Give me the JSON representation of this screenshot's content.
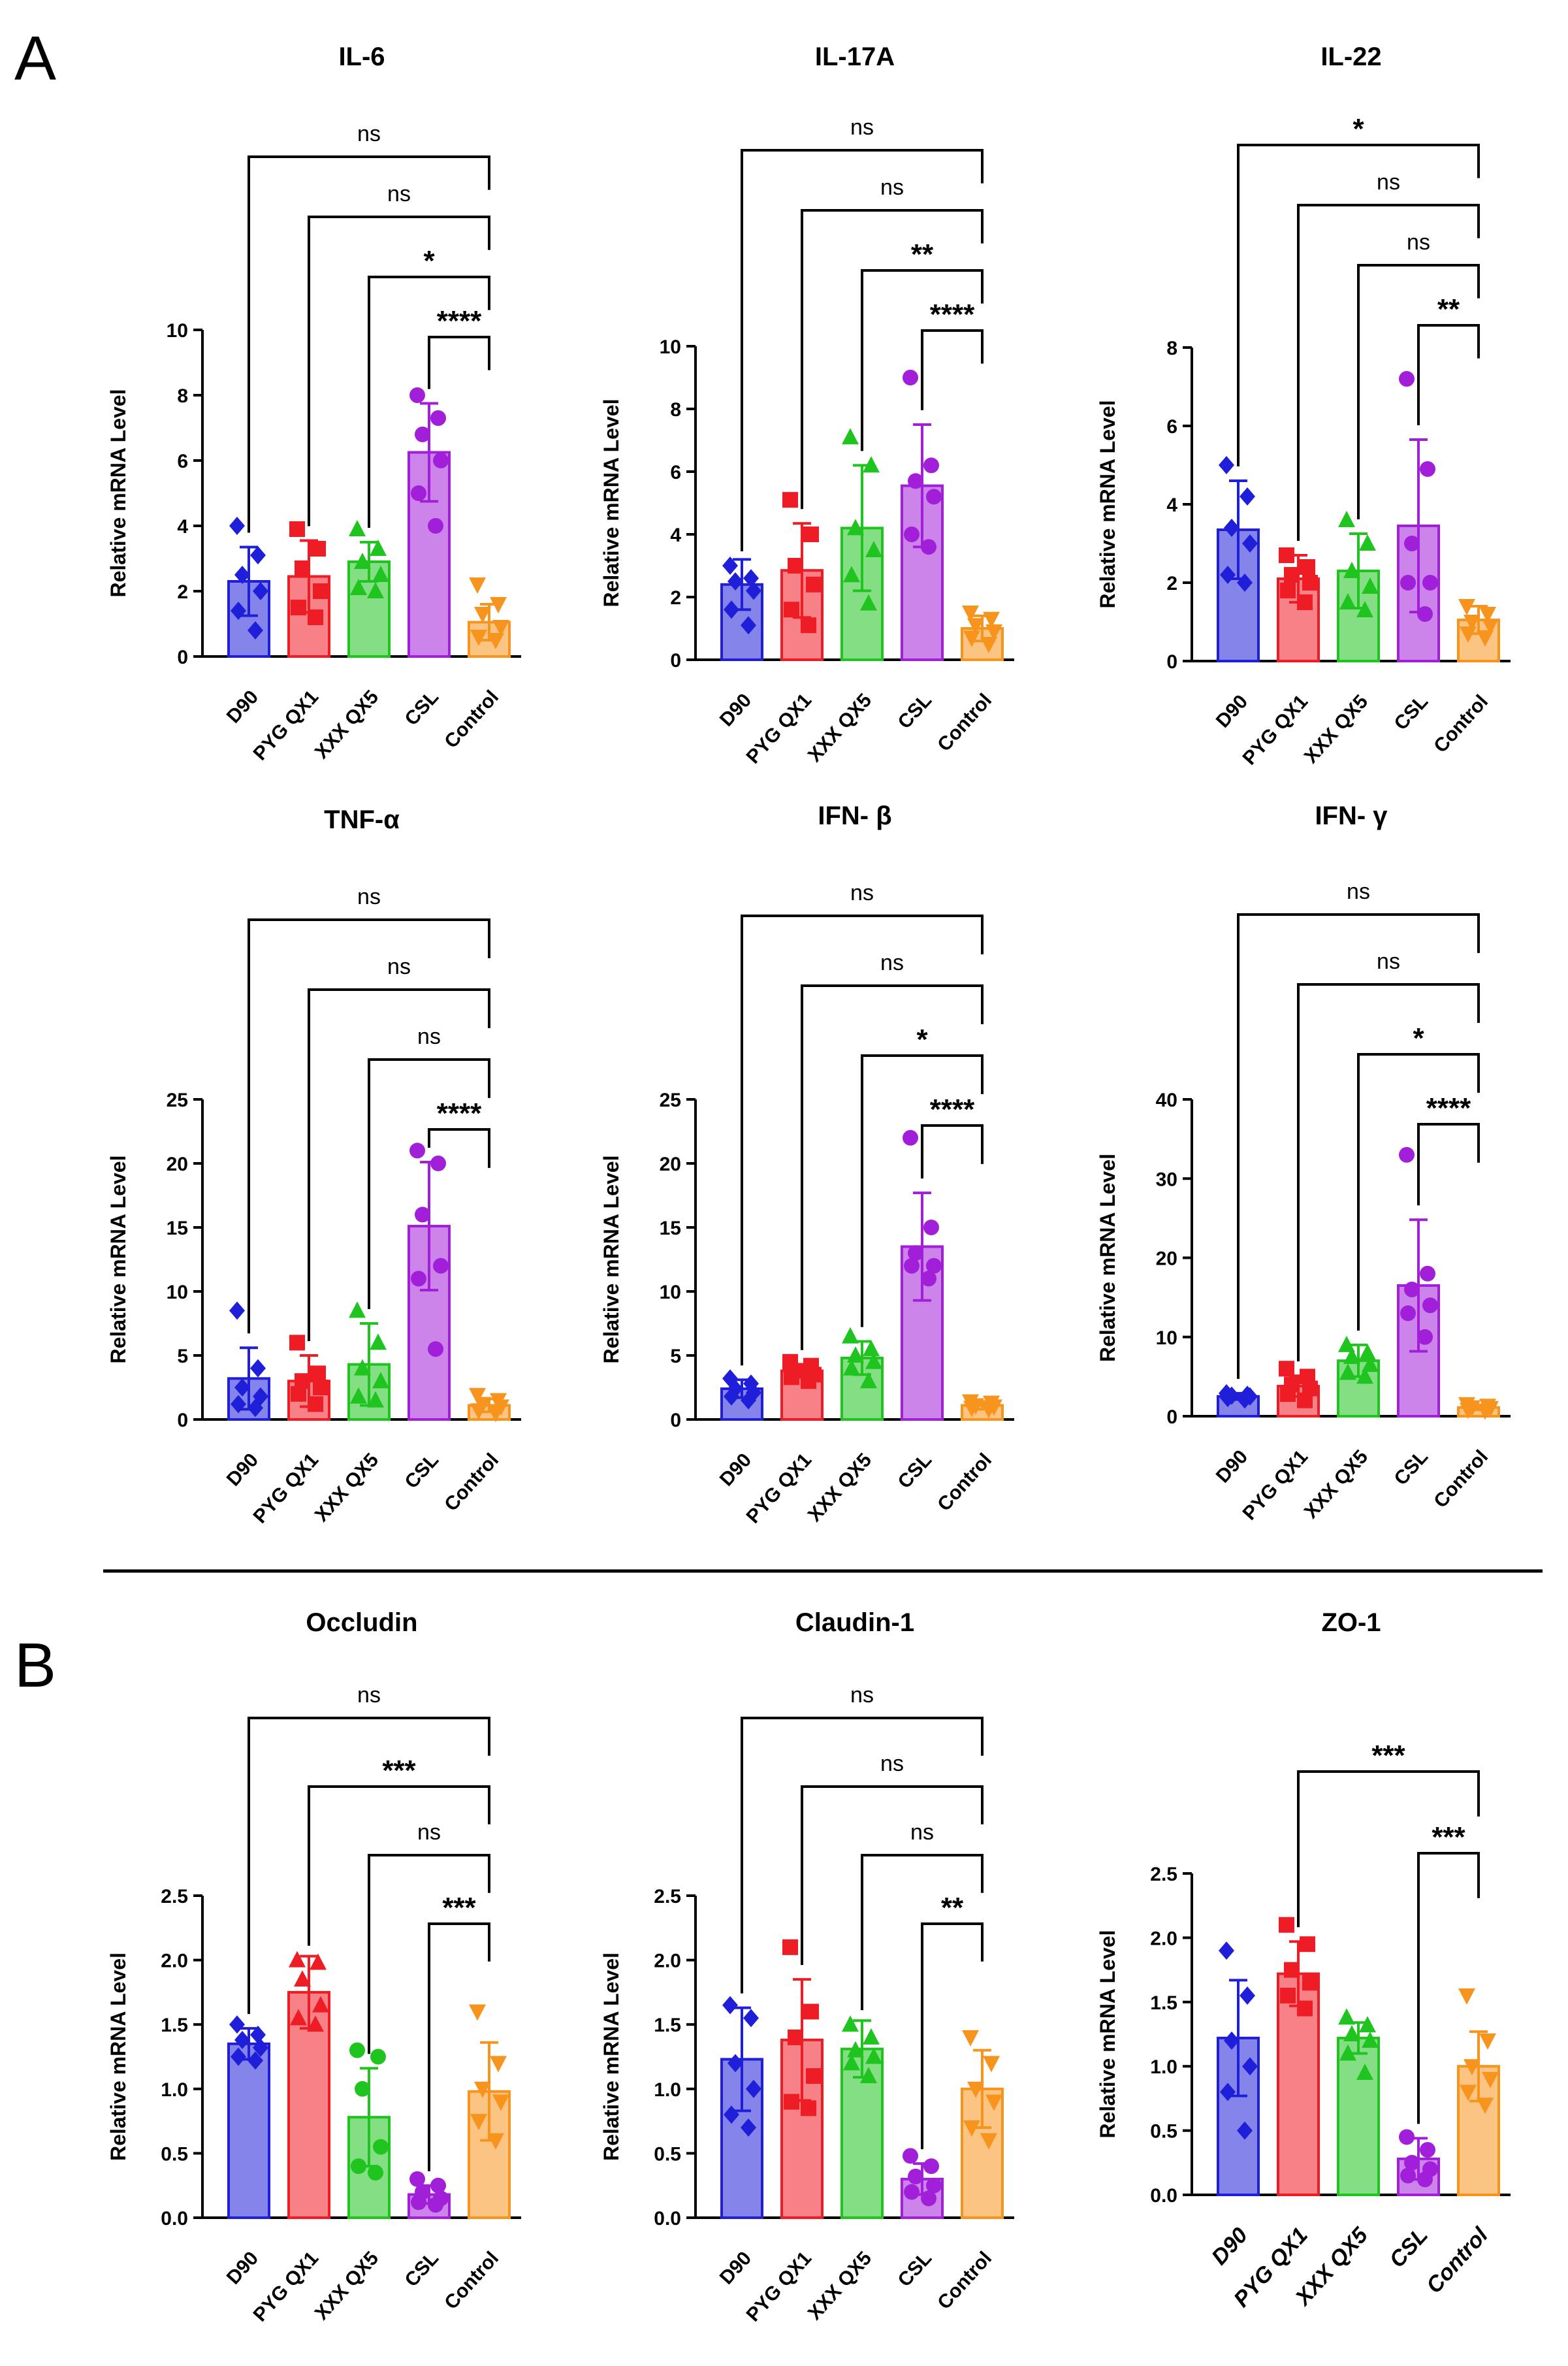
{
  "panels": [
    "A",
    "B"
  ],
  "group_colors": [
    "#1f1fd9",
    "#ee1c24",
    "#1fc41f",
    "#a21fd9",
    "#f7941d"
  ],
  "chart_data": [
    {
      "type": "bar",
      "panel": "A",
      "title": "IL-6",
      "ylabel": "Relative mRNA Level",
      "categories": [
        "D90",
        "PYG QX1",
        "XXX QX5",
        "CSL",
        "Control"
      ],
      "means": [
        2.3,
        2.45,
        2.9,
        6.25,
        1.05
      ],
      "sd": [
        1.05,
        1.1,
        0.6,
        1.5,
        0.55
      ],
      "points": [
        [
          4.0,
          3.1,
          2.5,
          2.0,
          1.4,
          0.8
        ],
        [
          3.9,
          3.3,
          2.7,
          2.0,
          1.5,
          1.2
        ],
        [
          3.9,
          3.3,
          2.9,
          2.5,
          2.1,
          2.0
        ],
        [
          8.0,
          7.3,
          6.8,
          6.0,
          5.0,
          4.0
        ],
        [
          2.2,
          1.6,
          1.3,
          0.9,
          0.6,
          0.5
        ]
      ],
      "ylim": [
        0,
        10
      ],
      "yticks": [
        "0",
        "2",
        "4",
        "6",
        "8",
        "10"
      ],
      "markers": [
        "diamond",
        "square",
        "triangle",
        "circle",
        "triangle-down"
      ],
      "comparisons": [
        {
          "from": 0,
          "label": "ns"
        },
        {
          "from": 1,
          "label": "ns"
        },
        {
          "from": 2,
          "label": "*"
        },
        {
          "from": 3,
          "label": "****"
        }
      ]
    },
    {
      "type": "bar",
      "panel": "A",
      "title": "IL-17A",
      "ylabel": "Relative mRNA Level",
      "categories": [
        "D90",
        "PYG QX1",
        "XXX QX5",
        "CSL",
        "Control"
      ],
      "means": [
        2.4,
        2.85,
        4.2,
        5.55,
        1.0
      ],
      "sd": [
        0.8,
        1.5,
        2.0,
        1.95,
        0.4
      ],
      "points": [
        [
          3.0,
          2.6,
          2.5,
          2.2,
          1.6,
          1.1
        ],
        [
          5.1,
          4.0,
          3.0,
          2.4,
          1.6,
          1.1
        ],
        [
          7.1,
          6.2,
          4.2,
          3.5,
          2.7,
          1.8
        ],
        [
          9.0,
          6.2,
          5.7,
          5.2,
          4.0,
          3.6
        ],
        [
          1.5,
          1.3,
          1.1,
          0.9,
          0.7,
          0.5
        ]
      ],
      "ylim": [
        0,
        10
      ],
      "yticks": [
        "0",
        "2",
        "4",
        "6",
        "8",
        "10"
      ],
      "markers": [
        "diamond",
        "square",
        "triangle",
        "circle",
        "triangle-down"
      ],
      "comparisons": [
        {
          "from": 0,
          "label": "ns"
        },
        {
          "from": 1,
          "label": "ns"
        },
        {
          "from": 2,
          "label": "**"
        },
        {
          "from": 3,
          "label": "****"
        }
      ]
    },
    {
      "type": "bar",
      "panel": "A",
      "title": "IL-22",
      "ylabel": "Relative mRNA Level",
      "categories": [
        "D90",
        "PYG QX1",
        "XXX QX5",
        "CSL",
        "Control"
      ],
      "means": [
        3.35,
        2.1,
        2.3,
        3.45,
        1.05
      ],
      "sd": [
        1.25,
        0.6,
        0.95,
        2.2,
        0.35
      ],
      "points": [
        [
          5.0,
          4.2,
          3.4,
          3.0,
          2.2,
          2.0
        ],
        [
          2.7,
          2.4,
          2.2,
          2.0,
          1.8,
          1.5
        ],
        [
          3.6,
          3.0,
          2.3,
          1.9,
          1.5,
          1.3
        ],
        [
          7.2,
          4.9,
          3.0,
          2.0,
          2.0,
          1.2
        ],
        [
          1.4,
          1.2,
          1.0,
          0.9,
          0.7,
          0.6
        ]
      ],
      "ylim": [
        0,
        8
      ],
      "yticks": [
        "0",
        "2",
        "4",
        "6",
        "8"
      ],
      "markers": [
        "diamond",
        "square",
        "triangle",
        "circle",
        "triangle-down"
      ],
      "comparisons": [
        {
          "from": 0,
          "label": "*"
        },
        {
          "from": 1,
          "label": "ns"
        },
        {
          "from": 2,
          "label": "ns"
        },
        {
          "from": 3,
          "label": "**"
        }
      ]
    },
    {
      "type": "bar",
      "panel": "A",
      "title": "TNF-α",
      "ylabel": "Relative mRNA Level",
      "categories": [
        "D90",
        "PYG QX1",
        "XXX QX5",
        "CSL",
        "Control"
      ],
      "means": [
        3.2,
        3.0,
        4.3,
        15.1,
        1.1
      ],
      "sd": [
        2.4,
        2.0,
        3.2,
        5.0,
        0.5
      ],
      "points": [
        [
          8.5,
          4.0,
          2.5,
          1.8,
          1.2,
          0.9
        ],
        [
          6.0,
          3.6,
          3.0,
          2.5,
          2.0,
          1.2
        ],
        [
          8.5,
          6.0,
          4.0,
          3.0,
          1.8,
          1.5
        ],
        [
          21.0,
          20.0,
          16.0,
          12.0,
          11.0,
          5.5
        ],
        [
          1.9,
          1.5,
          1.2,
          1.0,
          0.7,
          0.5
        ]
      ],
      "ylim": [
        0,
        25
      ],
      "yticks": [
        "0",
        "5",
        "10",
        "15",
        "20",
        "25"
      ],
      "markers": [
        "diamond",
        "square",
        "triangle",
        "circle",
        "triangle-down"
      ],
      "comparisons": [
        {
          "from": 0,
          "label": "ns"
        },
        {
          "from": 1,
          "label": "ns"
        },
        {
          "from": 2,
          "label": "ns"
        },
        {
          "from": 3,
          "label": "****"
        }
      ]
    },
    {
      "type": "bar",
      "panel": "A",
      "title": "IFN- β",
      "ylabel": "Relative mRNA Level",
      "categories": [
        "D90",
        "PYG QX1",
        "XXX QX5",
        "CSL",
        "Control"
      ],
      "means": [
        2.4,
        3.8,
        4.8,
        13.5,
        1.1
      ],
      "sd": [
        0.7,
        0.5,
        1.3,
        4.2,
        0.3
      ],
      "points": [
        [
          3.2,
          2.8,
          2.4,
          2.1,
          1.8,
          1.5
        ],
        [
          4.5,
          4.2,
          3.8,
          3.5,
          3.3,
          3.0
        ],
        [
          6.5,
          5.5,
          5.0,
          4.5,
          4.0,
          3.0
        ],
        [
          22.0,
          15.0,
          13.0,
          12.0,
          12.0,
          11.0
        ],
        [
          1.4,
          1.3,
          1.1,
          1.0,
          0.9,
          0.8
        ]
      ],
      "ylim": [
        0,
        25
      ],
      "yticks": [
        "0",
        "5",
        "10",
        "15",
        "20",
        "25"
      ],
      "markers": [
        "diamond",
        "square",
        "triangle",
        "circle",
        "triangle-down"
      ],
      "comparisons": [
        {
          "from": 0,
          "label": "ns"
        },
        {
          "from": 1,
          "label": "ns"
        },
        {
          "from": 2,
          "label": "*"
        },
        {
          "from": 3,
          "label": "****"
        }
      ]
    },
    {
      "type": "bar",
      "panel": "A",
      "title": "IFN- γ",
      "ylabel": "Relative mRNA Level",
      "categories": [
        "D90",
        "PYG QX1",
        "XXX QX5",
        "CSL",
        "Control"
      ],
      "means": [
        2.5,
        3.8,
        7.0,
        16.5,
        1.1
      ],
      "sd": [
        0.4,
        1.3,
        2.0,
        8.3,
        0.3
      ],
      "points": [
        [
          2.9,
          2.7,
          2.6,
          2.5,
          2.3,
          2.1
        ],
        [
          6.0,
          5.0,
          4.0,
          3.5,
          2.8,
          2.0
        ],
        [
          9.0,
          8.0,
          7.5,
          6.5,
          5.5,
          5.0
        ],
        [
          33.0,
          18.0,
          16.0,
          14.0,
          13.0,
          10.0
        ],
        [
          1.5,
          1.3,
          1.1,
          1.0,
          0.8,
          0.7
        ]
      ],
      "ylim": [
        0,
        40
      ],
      "yticks": [
        "0",
        "10",
        "20",
        "30",
        "40"
      ],
      "markers": [
        "diamond",
        "square",
        "triangle",
        "circle",
        "triangle-down"
      ],
      "comparisons": [
        {
          "from": 0,
          "label": "ns"
        },
        {
          "from": 1,
          "label": "ns"
        },
        {
          "from": 2,
          "label": "*"
        },
        {
          "from": 3,
          "label": "****"
        }
      ]
    },
    {
      "type": "bar",
      "panel": "B",
      "title": "Occludin",
      "ylabel": "Relative mRNA Level",
      "categories": [
        "D90",
        "PYG QX1",
        "XXX QX5",
        "CSL",
        "Control"
      ],
      "means": [
        1.35,
        1.75,
        0.78,
        0.18,
        0.98
      ],
      "sd": [
        0.12,
        0.28,
        0.38,
        0.07,
        0.38
      ],
      "points": [
        [
          1.5,
          1.42,
          1.38,
          1.32,
          1.25,
          1.22
        ],
        [
          2.0,
          1.98,
          1.85,
          1.65,
          1.55,
          1.5
        ],
        [
          1.3,
          1.25,
          1.0,
          0.55,
          0.4,
          0.35
        ],
        [
          0.3,
          0.25,
          0.2,
          0.15,
          0.12,
          0.1
        ],
        [
          1.6,
          1.2,
          1.0,
          0.9,
          0.75,
          0.6
        ]
      ],
      "ylim": [
        0,
        2.5
      ],
      "yticks": [
        "0.0",
        "0.5",
        "1.0",
        "1.5",
        "2.0",
        "2.5"
      ],
      "markers": [
        "diamond",
        "triangle",
        "circle",
        "circle",
        "triangle-down"
      ],
      "comparisons": [
        {
          "from": 0,
          "label": "ns"
        },
        {
          "from": 1,
          "label": "***"
        },
        {
          "from": 2,
          "label": "ns"
        },
        {
          "from": 3,
          "label": "***"
        }
      ]
    },
    {
      "type": "bar",
      "panel": "B",
      "title": "Claudin-1",
      "ylabel": "Relative mRNA Level",
      "categories": [
        "D90",
        "PYG QX1",
        "XXX QX5",
        "CSL",
        "Control"
      ],
      "means": [
        1.23,
        1.38,
        1.31,
        0.3,
        1.0
      ],
      "sd": [
        0.4,
        0.47,
        0.22,
        0.12,
        0.3
      ],
      "points": [
        [
          1.65,
          1.55,
          1.2,
          1.0,
          0.8,
          0.7
        ],
        [
          2.1,
          1.6,
          1.4,
          1.1,
          0.9,
          0.85
        ],
        [
          1.5,
          1.4,
          1.3,
          1.25,
          1.2,
          1.1
        ],
        [
          0.48,
          0.4,
          0.32,
          0.25,
          0.2,
          0.15
        ],
        [
          1.4,
          1.2,
          1.0,
          0.9,
          0.7,
          0.6
        ]
      ],
      "ylim": [
        0,
        2.5
      ],
      "yticks": [
        "0.0",
        "0.5",
        "1.0",
        "1.5",
        "2.0",
        "2.5"
      ],
      "markers": [
        "diamond",
        "square",
        "triangle",
        "circle",
        "triangle-down"
      ],
      "comparisons": [
        {
          "from": 0,
          "label": "ns"
        },
        {
          "from": 1,
          "label": "ns"
        },
        {
          "from": 2,
          "label": "ns"
        },
        {
          "from": 3,
          "label": "**"
        }
      ]
    },
    {
      "type": "bar",
      "panel": "B",
      "title": "ZO-1",
      "ylabel": "Relative mRNA Level",
      "categories": [
        "D90",
        "PYG QX1",
        "XXX QX5",
        "CSL",
        "Control"
      ],
      "means": [
        1.22,
        1.72,
        1.22,
        0.28,
        1.0
      ],
      "sd": [
        0.45,
        0.25,
        0.12,
        0.16,
        0.27
      ],
      "points": [
        [
          1.9,
          1.55,
          1.2,
          1.0,
          0.8,
          0.5
        ],
        [
          2.1,
          1.95,
          1.75,
          1.65,
          1.55,
          1.45
        ],
        [
          1.38,
          1.32,
          1.25,
          1.2,
          1.1,
          0.95
        ],
        [
          0.45,
          0.35,
          0.25,
          0.2,
          0.15,
          0.12
        ],
        [
          1.55,
          1.2,
          1.0,
          0.9,
          0.8,
          0.7
        ]
      ],
      "ylim": [
        0,
        2.5
      ],
      "yticks": [
        "0.0",
        "0.5",
        "1.0",
        "1.5",
        "2.0",
        "2.5"
      ],
      "markers": [
        "diamond",
        "square",
        "triangle",
        "circle",
        "triangle-down"
      ],
      "italic_categories": true,
      "comparisons": [
        {
          "from": 1,
          "label": "***"
        },
        {
          "from": 3,
          "label": "***"
        }
      ]
    }
  ]
}
